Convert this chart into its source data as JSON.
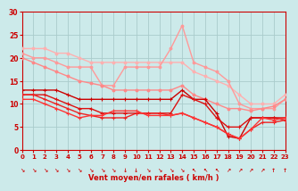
{
  "background_color": "#cceaea",
  "grid_color": "#aacccc",
  "xlabel": "Vent moyen/en rafales ( km/h )",
  "xlim": [
    0,
    23
  ],
  "ylim": [
    0,
    30
  ],
  "yticks": [
    0,
    5,
    10,
    15,
    20,
    25,
    30
  ],
  "xticks": [
    0,
    1,
    2,
    3,
    4,
    5,
    6,
    7,
    8,
    9,
    10,
    11,
    12,
    13,
    14,
    15,
    16,
    17,
    18,
    19,
    20,
    21,
    22,
    23
  ],
  "series": [
    {
      "comment": "lightest pink - top envelope, nearly straight diagonal",
      "color": "#ffb0b0",
      "lw": 1.0,
      "marker": "o",
      "ms": 2.0,
      "x": [
        0,
        1,
        2,
        3,
        4,
        5,
        6,
        7,
        8,
        9,
        10,
        11,
        12,
        13,
        14,
        15,
        16,
        17,
        18,
        19,
        20,
        21,
        22,
        23
      ],
      "y": [
        22,
        22,
        22,
        21,
        21,
        20,
        19,
        19,
        19,
        19,
        19,
        19,
        19,
        19,
        19,
        17,
        16,
        15,
        14,
        12,
        10,
        10,
        10,
        12
      ]
    },
    {
      "comment": "light pink - second envelope",
      "color": "#ff9999",
      "lw": 1.0,
      "marker": "o",
      "ms": 2.0,
      "x": [
        0,
        1,
        2,
        3,
        4,
        5,
        6,
        7,
        8,
        9,
        10,
        11,
        12,
        13,
        14,
        15,
        16,
        17,
        18,
        19,
        20,
        21,
        22,
        23
      ],
      "y": [
        21,
        20,
        20,
        19,
        18,
        18,
        18,
        14,
        14,
        18,
        18,
        18,
        18,
        22,
        27,
        19,
        18,
        17,
        15,
        10,
        9,
        9,
        9,
        11
      ]
    },
    {
      "comment": "medium pink - third line with peak at 14",
      "color": "#ff8888",
      "lw": 1.0,
      "marker": "o",
      "ms": 2.0,
      "x": [
        0,
        1,
        2,
        3,
        4,
        5,
        6,
        7,
        8,
        9,
        10,
        11,
        12,
        13,
        14,
        15,
        16,
        17,
        18,
        19,
        20,
        21,
        22,
        23
      ],
      "y": [
        20,
        19,
        18,
        17,
        16,
        15,
        14.5,
        14,
        13,
        13,
        13,
        13,
        13,
        13,
        14,
        12,
        11,
        10,
        9,
        9,
        8.5,
        9,
        9.5,
        11
      ]
    },
    {
      "comment": "dark red straight - top of dark cluster",
      "color": "#cc0000",
      "lw": 1.0,
      "marker": "+",
      "ms": 3.0,
      "x": [
        0,
        1,
        2,
        3,
        4,
        5,
        6,
        7,
        8,
        9,
        10,
        11,
        12,
        13,
        14,
        15,
        16,
        17,
        18,
        19,
        20,
        21,
        22,
        23
      ],
      "y": [
        13,
        13,
        13,
        13,
        12,
        11,
        11,
        11,
        11,
        11,
        11,
        11,
        11,
        11,
        13,
        11,
        11,
        8,
        3,
        2.5,
        7,
        7,
        7,
        7
      ]
    },
    {
      "comment": "red - middle dark",
      "color": "#dd1111",
      "lw": 1.0,
      "marker": "+",
      "ms": 3.0,
      "x": [
        0,
        1,
        2,
        3,
        4,
        5,
        6,
        7,
        8,
        9,
        10,
        11,
        12,
        13,
        14,
        15,
        16,
        17,
        18,
        19,
        20,
        21,
        22,
        23
      ],
      "y": [
        12,
        12,
        12,
        11,
        10,
        9,
        9,
        8,
        8,
        8,
        8,
        8,
        8,
        8,
        12,
        11,
        10,
        7,
        5,
        5,
        7,
        7,
        7,
        6.5
      ]
    },
    {
      "comment": "red - lower middle",
      "color": "#ee2222",
      "lw": 1.0,
      "marker": "+",
      "ms": 3.0,
      "x": [
        0,
        1,
        2,
        3,
        4,
        5,
        6,
        7,
        8,
        9,
        10,
        11,
        12,
        13,
        14,
        15,
        16,
        17,
        18,
        19,
        20,
        21,
        22,
        23
      ],
      "y": [
        12,
        12,
        11,
        10,
        9,
        8,
        7.5,
        7,
        7,
        7,
        8,
        8,
        8,
        7.5,
        8,
        7,
        6,
        5,
        3.5,
        2.5,
        4.5,
        6,
        6,
        6.5
      ]
    },
    {
      "comment": "bright red - lowest line with dip at 6-7",
      "color": "#ff3333",
      "lw": 1.0,
      "marker": "+",
      "ms": 3.0,
      "x": [
        0,
        1,
        2,
        3,
        4,
        5,
        6,
        7,
        8,
        9,
        10,
        11,
        12,
        13,
        14,
        15,
        16,
        17,
        18,
        19,
        20,
        21,
        22,
        23
      ],
      "y": [
        11,
        11,
        10,
        9,
        8,
        7,
        7.5,
        7.5,
        8.5,
        8.5,
        8.5,
        7.5,
        7.5,
        7.5,
        8,
        7,
        6,
        5,
        3.5,
        2.5,
        4.5,
        7,
        6.5,
        7
      ]
    }
  ],
  "arrow_directions": [
    "SW",
    "SW",
    "SW",
    "SW",
    "SW",
    "SW",
    "SW",
    "SW",
    "SW",
    "S",
    "S",
    "SW",
    "SW",
    "SW",
    "SW",
    "NW",
    "NW",
    "NW",
    "NE",
    "NE",
    "NE",
    "NE",
    "N",
    "N"
  ],
  "label_color": "#cc0000",
  "spine_color": "#cc0000"
}
